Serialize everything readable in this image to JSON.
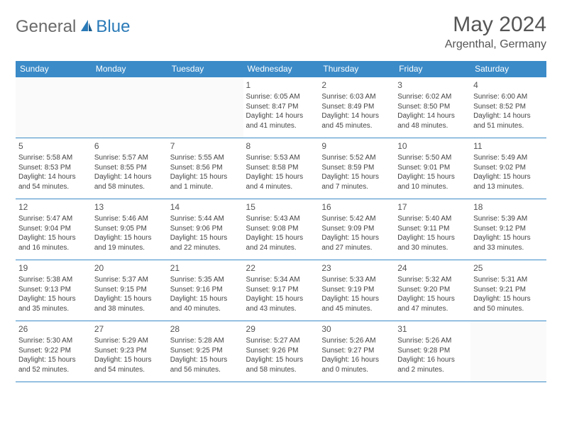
{
  "brand": {
    "part1": "General",
    "part2": "Blue"
  },
  "title": "May 2024",
  "location": "Argenthal, Germany",
  "colors": {
    "header_bg": "#3b8bc8",
    "header_text": "#ffffff",
    "border": "#3b8bc8",
    "text": "#444444",
    "brand_gray": "#6a6a6a",
    "brand_blue": "#2a7ab8"
  },
  "weekdays": [
    "Sunday",
    "Monday",
    "Tuesday",
    "Wednesday",
    "Thursday",
    "Friday",
    "Saturday"
  ],
  "weeks": [
    [
      null,
      null,
      null,
      {
        "n": "1",
        "sr": "6:05 AM",
        "ss": "8:47 PM",
        "dl": "14 hours and 41 minutes."
      },
      {
        "n": "2",
        "sr": "6:03 AM",
        "ss": "8:49 PM",
        "dl": "14 hours and 45 minutes."
      },
      {
        "n": "3",
        "sr": "6:02 AM",
        "ss": "8:50 PM",
        "dl": "14 hours and 48 minutes."
      },
      {
        "n": "4",
        "sr": "6:00 AM",
        "ss": "8:52 PM",
        "dl": "14 hours and 51 minutes."
      }
    ],
    [
      {
        "n": "5",
        "sr": "5:58 AM",
        "ss": "8:53 PM",
        "dl": "14 hours and 54 minutes."
      },
      {
        "n": "6",
        "sr": "5:57 AM",
        "ss": "8:55 PM",
        "dl": "14 hours and 58 minutes."
      },
      {
        "n": "7",
        "sr": "5:55 AM",
        "ss": "8:56 PM",
        "dl": "15 hours and 1 minute."
      },
      {
        "n": "8",
        "sr": "5:53 AM",
        "ss": "8:58 PM",
        "dl": "15 hours and 4 minutes."
      },
      {
        "n": "9",
        "sr": "5:52 AM",
        "ss": "8:59 PM",
        "dl": "15 hours and 7 minutes."
      },
      {
        "n": "10",
        "sr": "5:50 AM",
        "ss": "9:01 PM",
        "dl": "15 hours and 10 minutes."
      },
      {
        "n": "11",
        "sr": "5:49 AM",
        "ss": "9:02 PM",
        "dl": "15 hours and 13 minutes."
      }
    ],
    [
      {
        "n": "12",
        "sr": "5:47 AM",
        "ss": "9:04 PM",
        "dl": "15 hours and 16 minutes."
      },
      {
        "n": "13",
        "sr": "5:46 AM",
        "ss": "9:05 PM",
        "dl": "15 hours and 19 minutes."
      },
      {
        "n": "14",
        "sr": "5:44 AM",
        "ss": "9:06 PM",
        "dl": "15 hours and 22 minutes."
      },
      {
        "n": "15",
        "sr": "5:43 AM",
        "ss": "9:08 PM",
        "dl": "15 hours and 24 minutes."
      },
      {
        "n": "16",
        "sr": "5:42 AM",
        "ss": "9:09 PM",
        "dl": "15 hours and 27 minutes."
      },
      {
        "n": "17",
        "sr": "5:40 AM",
        "ss": "9:11 PM",
        "dl": "15 hours and 30 minutes."
      },
      {
        "n": "18",
        "sr": "5:39 AM",
        "ss": "9:12 PM",
        "dl": "15 hours and 33 minutes."
      }
    ],
    [
      {
        "n": "19",
        "sr": "5:38 AM",
        "ss": "9:13 PM",
        "dl": "15 hours and 35 minutes."
      },
      {
        "n": "20",
        "sr": "5:37 AM",
        "ss": "9:15 PM",
        "dl": "15 hours and 38 minutes."
      },
      {
        "n": "21",
        "sr": "5:35 AM",
        "ss": "9:16 PM",
        "dl": "15 hours and 40 minutes."
      },
      {
        "n": "22",
        "sr": "5:34 AM",
        "ss": "9:17 PM",
        "dl": "15 hours and 43 minutes."
      },
      {
        "n": "23",
        "sr": "5:33 AM",
        "ss": "9:19 PM",
        "dl": "15 hours and 45 minutes."
      },
      {
        "n": "24",
        "sr": "5:32 AM",
        "ss": "9:20 PM",
        "dl": "15 hours and 47 minutes."
      },
      {
        "n": "25",
        "sr": "5:31 AM",
        "ss": "9:21 PM",
        "dl": "15 hours and 50 minutes."
      }
    ],
    [
      {
        "n": "26",
        "sr": "5:30 AM",
        "ss": "9:22 PM",
        "dl": "15 hours and 52 minutes."
      },
      {
        "n": "27",
        "sr": "5:29 AM",
        "ss": "9:23 PM",
        "dl": "15 hours and 54 minutes."
      },
      {
        "n": "28",
        "sr": "5:28 AM",
        "ss": "9:25 PM",
        "dl": "15 hours and 56 minutes."
      },
      {
        "n": "29",
        "sr": "5:27 AM",
        "ss": "9:26 PM",
        "dl": "15 hours and 58 minutes."
      },
      {
        "n": "30",
        "sr": "5:26 AM",
        "ss": "9:27 PM",
        "dl": "16 hours and 0 minutes."
      },
      {
        "n": "31",
        "sr": "5:26 AM",
        "ss": "9:28 PM",
        "dl": "16 hours and 2 minutes."
      },
      null
    ]
  ]
}
